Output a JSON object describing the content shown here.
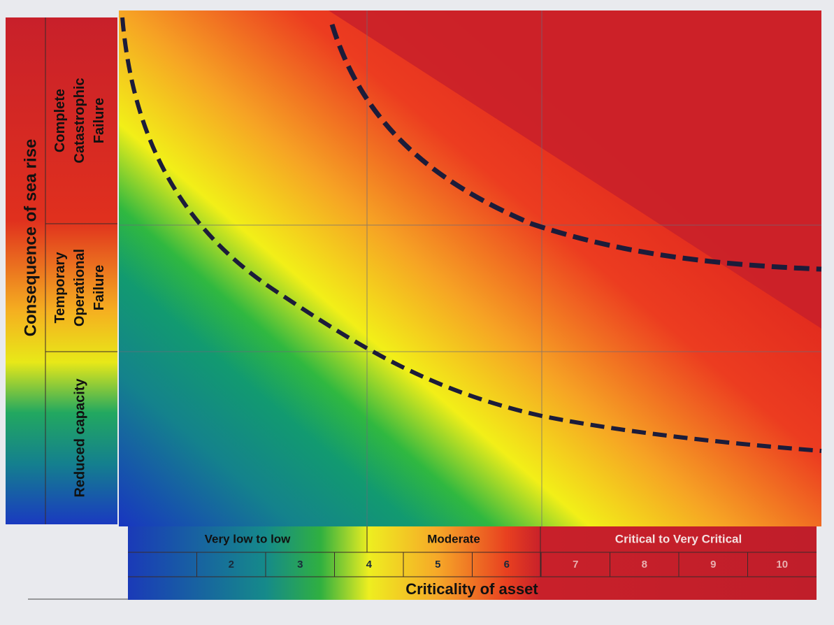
{
  "y_axis": {
    "title": "Consequence of sea rise",
    "levels": [
      "Complete Catastrophic Failure",
      "Temporary Operational Failure",
      "Reduced capacity"
    ]
  },
  "x_axis": {
    "title": "Criticality of asset",
    "bands": [
      "Very low to low",
      "Moderate",
      "Critical to Very Critical"
    ],
    "scale": [
      2,
      3,
      4,
      5,
      6,
      7,
      8,
      9,
      10
    ]
  }
}
